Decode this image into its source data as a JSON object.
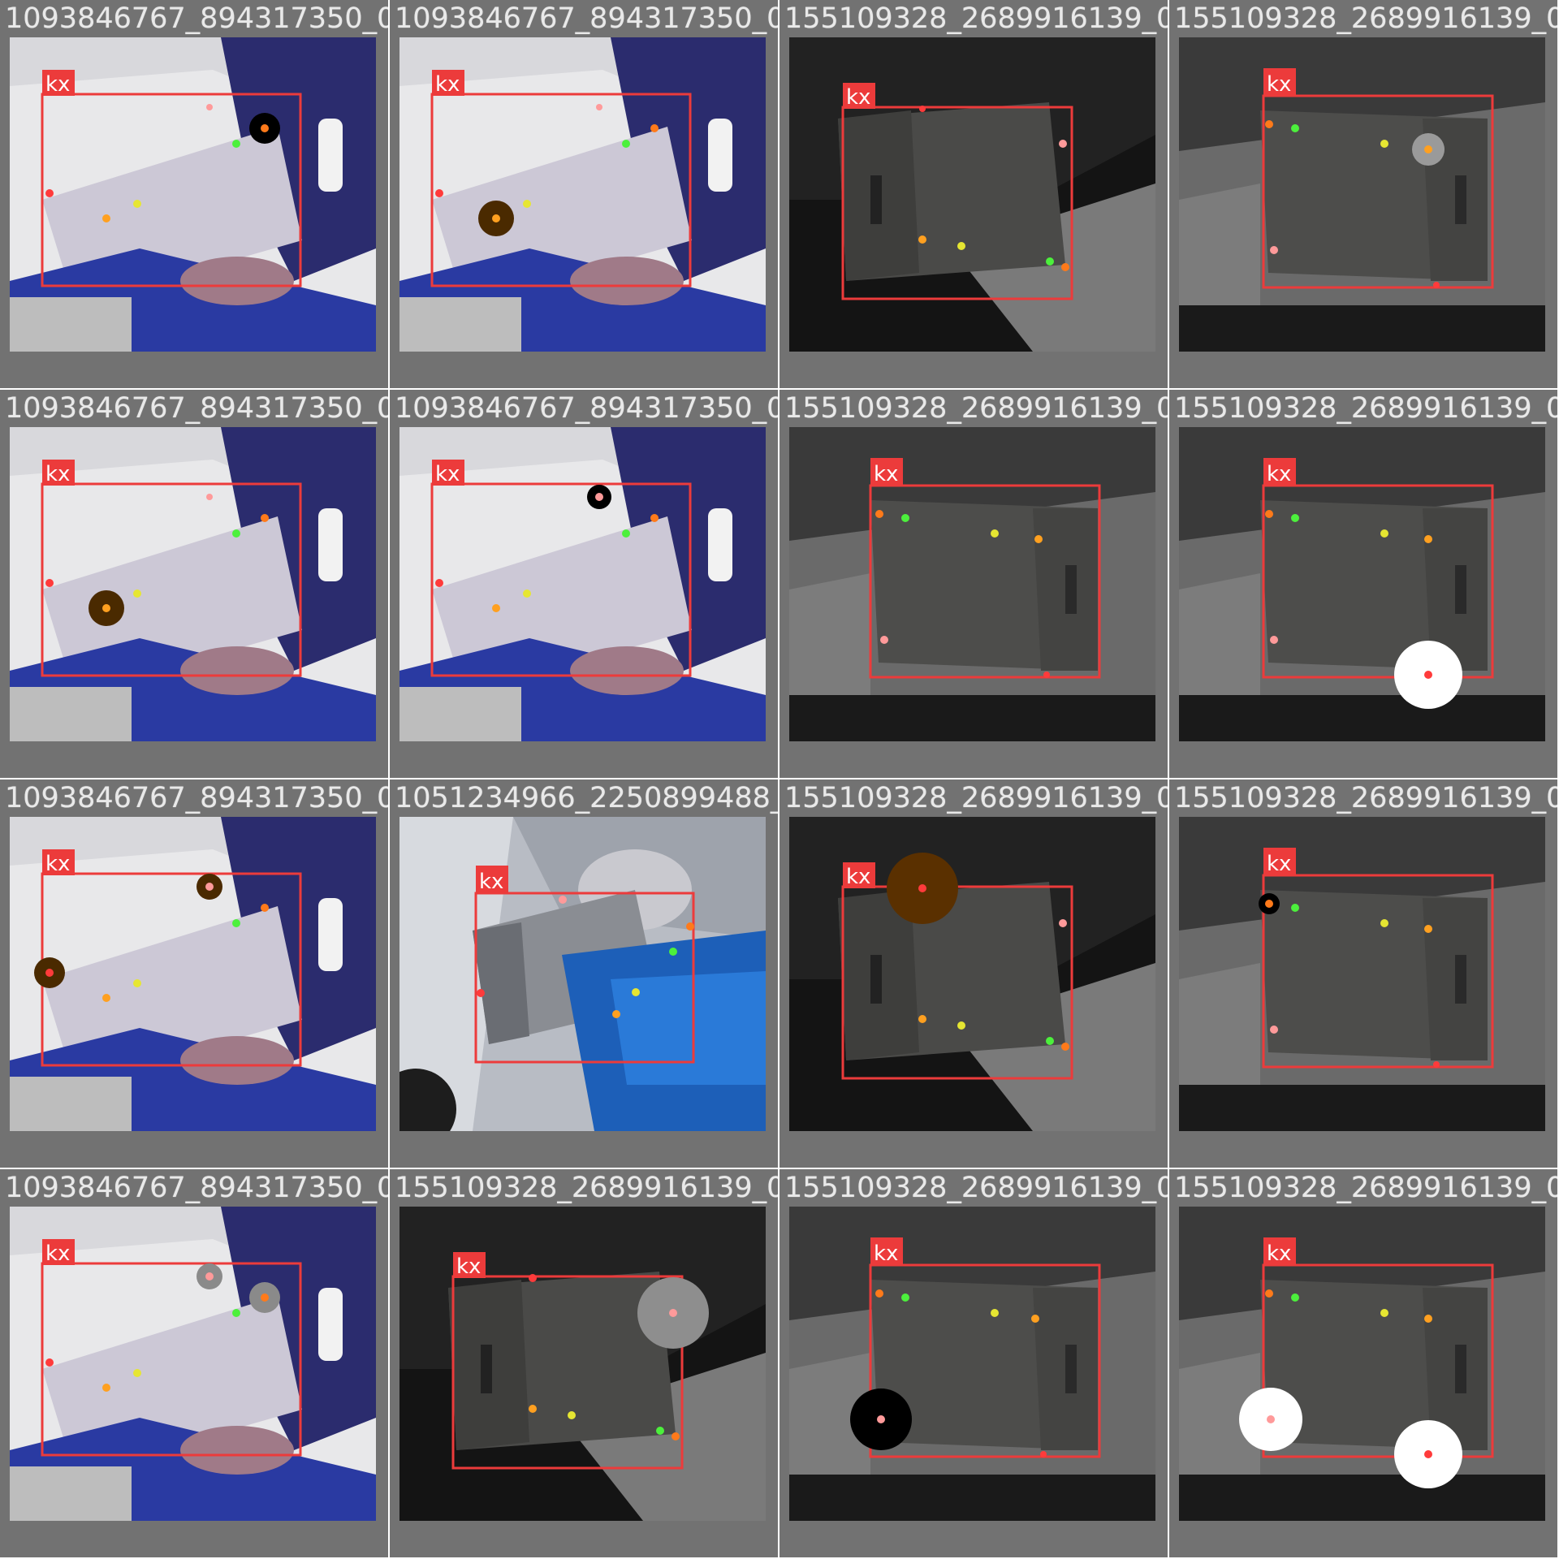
{
  "box_label": "kx",
  "colors": {
    "grid_background": "#727272",
    "box": "#ec3b3b",
    "keypoints": [
      "#ff3b3b",
      "#ff9a9a",
      "#ff7a1a",
      "#ffa020",
      "#e6e632",
      "#4cf03c"
    ]
  },
  "scenes": {
    "a": "light bench / rack with blue crates",
    "b": "dark grey box on black background (variant 1)",
    "c": "dark grey box on black background (variant 2)",
    "d": "cluttered desk with blue crate"
  },
  "tiles": [
    {
      "filename": "1093846767_894317350_0010.jpg",
      "scene": "a",
      "variant": "black-top"
    },
    {
      "filename": "1093846767_894317350_0011.jpg",
      "scene": "a",
      "variant": "brown-left"
    },
    {
      "filename": "155109328_2689916139_0015.jpg",
      "scene": "b",
      "variant": "plain"
    },
    {
      "filename": "155109328_2689916139_0015_rotate_28.jpg",
      "scene": "c",
      "variant": "grey-top"
    },
    {
      "filename": "1093846767_894317350_0010.jpg",
      "scene": "a",
      "variant": "brown-left"
    },
    {
      "filename": "1093846767_894317350_0011.jpg",
      "scene": "a",
      "variant": "black-mid"
    },
    {
      "filename": "155109328_2689916139_0015_rotate_270.jpg",
      "scene": "c",
      "variant": "plain"
    },
    {
      "filename": "155109328_2689916139_0015_rotate_270.jpg",
      "scene": "c",
      "variant": "white-bottom"
    },
    {
      "filename": "1093846767_894317350_0010.jpg",
      "scene": "a",
      "variant": "brown-two"
    },
    {
      "filename": "1051234966_2250899488_0010.jpg",
      "scene": "d",
      "variant": "plain"
    },
    {
      "filename": "155109328_2689916139_0015.jpg",
      "scene": "b",
      "variant": "orange-top"
    },
    {
      "filename": "155109328_2689916139_0015_rotate_28.jpg",
      "scene": "c",
      "variant": "black-small"
    },
    {
      "filename": "1093846767_894317350_0010.jpg",
      "scene": "a",
      "variant": "grey-two"
    },
    {
      "filename": "155109328_2689916139_0015.jpg",
      "scene": "b",
      "variant": "grey-right"
    },
    {
      "filename": "155109328_2689916139_0015_rotate_28.jpg",
      "scene": "c",
      "variant": "black-bottom"
    },
    {
      "filename": "155109328_2689916139_0015_rotate_270.jpg",
      "scene": "c",
      "variant": "white-two"
    }
  ]
}
